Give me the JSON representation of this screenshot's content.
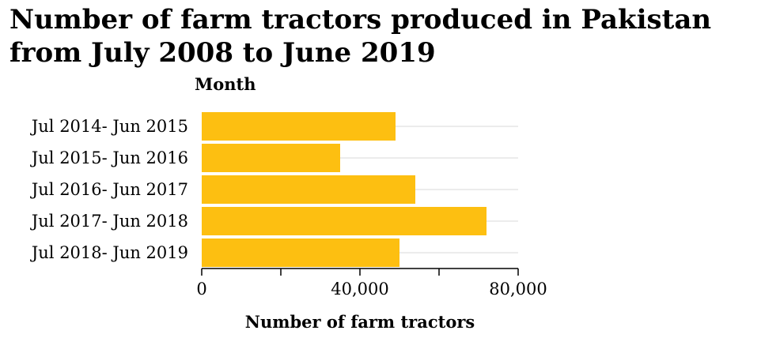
{
  "chart_data": {
    "type": "bar",
    "orientation": "horizontal",
    "title": "Number of farm tractors produced in Pakistan from July 2008 to June 2019",
    "xlabel": "Number of farm tractors",
    "ylabel": "Month",
    "categories": [
      "Jul 2014- Jun 2015",
      "Jul 2015- Jun 2016",
      "Jul 2016- Jun 2017",
      "Jul 2017- Jun 2018",
      "Jul 2018- Jun 2019"
    ],
    "values": [
      49000,
      35000,
      54000,
      72000,
      50000
    ],
    "xlim": [
      0,
      80000
    ],
    "x_ticks": [
      0,
      20000,
      40000,
      60000,
      80000
    ],
    "x_tick_labels": [
      "0",
      "",
      "40,000",
      "",
      "80,000"
    ],
    "bar_color": "#fdbf11",
    "grid": true
  }
}
